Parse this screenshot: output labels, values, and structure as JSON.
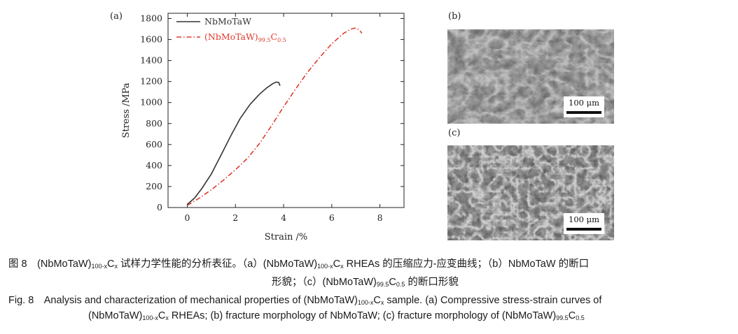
{
  "chart_data": {
    "type": "line",
    "panel_label": "(a)",
    "xlabel": "Strain /%",
    "ylabel": "Stress /MPa",
    "xlim": [
      -0.8,
      9
    ],
    "ylim": [
      0,
      1850
    ],
    "xticks": [
      0,
      2,
      4,
      6,
      8
    ],
    "yticks": [
      0,
      200,
      400,
      600,
      800,
      1000,
      1200,
      1400,
      1600,
      1800
    ],
    "legend_position": "top-left",
    "series": [
      {
        "name": "NbMoTaW",
        "color": "#333333",
        "style": "solid",
        "x": [
          0,
          0.3,
          0.6,
          1.0,
          1.4,
          1.8,
          2.2,
          2.6,
          3.0,
          3.3,
          3.55,
          3.7,
          3.8,
          3.85
        ],
        "y": [
          30,
          90,
          180,
          320,
          500,
          680,
          850,
          980,
          1080,
          1140,
          1180,
          1195,
          1190,
          1160
        ]
      },
      {
        "name": "(NbMoTaW)99.5C0.5",
        "color": "#e03a2e",
        "style": "dashdot",
        "x": [
          0,
          0.5,
          1.0,
          1.5,
          2.0,
          2.5,
          3.0,
          3.5,
          4.0,
          4.5,
          5.0,
          5.5,
          6.0,
          6.5,
          6.8,
          7.0,
          7.15,
          7.25
        ],
        "y": [
          20,
          90,
          170,
          260,
          360,
          470,
          610,
          780,
          960,
          1130,
          1290,
          1430,
          1560,
          1660,
          1700,
          1710,
          1690,
          1660
        ]
      }
    ]
  },
  "panels": {
    "b_label": "(b)",
    "c_label": "(c)",
    "scale_b": "100 μm",
    "scale_c": "100 μm"
  },
  "caption": {
    "cn1_a": "图 8　(NbMoTaW)",
    "cn1_sub1": "100-x",
    "cn1_b": "C",
    "cn1_sub2": "x",
    "cn1_c": " 试样力学性能的分析表征。（a）(NbMoTaW)",
    "cn1_sub3": "100-x",
    "cn1_d": "C",
    "cn1_sub4": "x",
    "cn1_e": " RHEAs 的压缩应力-应变曲线；（b）NbMoTaW 的断口",
    "cn2_a": "形貌；（c）(NbMoTaW)",
    "cn2_sub1": "99.5",
    "cn2_b": "C",
    "cn2_sub2": "0.5",
    "cn2_c": " 的断口形貌",
    "en1_a": "Fig. 8　Analysis and characterization of mechanical properties of (NbMoTaW)",
    "en1_sub1": "100-x",
    "en1_b": "C",
    "en1_sub2": "x",
    "en1_c": " sample. (a) Compressive stress-strain curves of",
    "en2_a": "(NbMoTaW)",
    "en2_sub1": "100-x",
    "en2_b": "C",
    "en2_sub2": "x",
    "en2_c": " RHEAs; (b) fracture morphology of NbMoTaW; (c) fracture morphology of (NbMoTaW)",
    "en2_sub3": "99.5",
    "en2_d": "C",
    "en2_sub4": "0.5"
  },
  "colors": {
    "series1": "#333333",
    "series2": "#e03a2e"
  }
}
